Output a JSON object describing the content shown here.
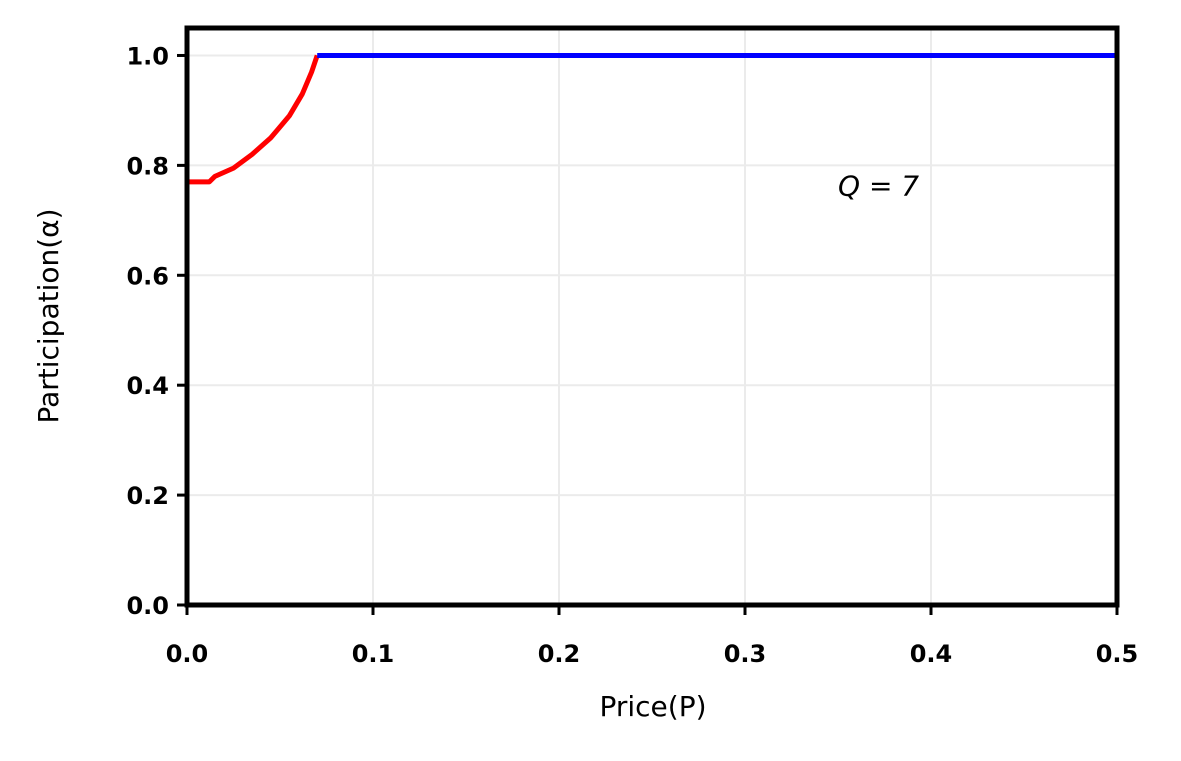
{
  "chart_data": {
    "type": "line",
    "xlabel": "Price(P)",
    "ylabel": "Participation(α)",
    "annotation": "Q = 7",
    "annotation_xy": [
      0.35,
      0.76
    ],
    "xlim": [
      0,
      0.5
    ],
    "ylim": [
      0,
      1.05
    ],
    "xticks": [
      {
        "value": 0,
        "label": "0.0"
      },
      0.1,
      0.2,
      0.3,
      0.4,
      0.5
    ],
    "yticks": [
      {
        "value": 0,
        "label": "0.0"
      },
      0.2,
      0.4,
      0.6,
      0.8,
      {
        "value": 1,
        "label": "1.0"
      }
    ],
    "grid": true,
    "series": [
      {
        "color": "#ff0000",
        "x": [
          0,
          0.012,
          0.015,
          0.025,
          0.035,
          0.045,
          0.055,
          0.062,
          0.067,
          0.07
        ],
        "values": [
          0.77,
          0.77,
          0.78,
          0.795,
          0.82,
          0.85,
          0.89,
          0.93,
          0.97,
          1.0
        ]
      },
      {
        "color": "#0000ff",
        "x": [
          0.07,
          0.5
        ],
        "values": [
          1.0,
          1.0
        ]
      }
    ]
  }
}
